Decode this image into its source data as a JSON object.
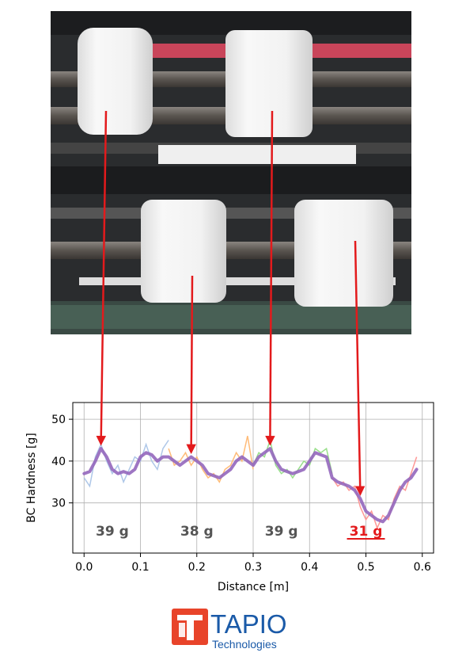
{
  "chart_data": {
    "type": "line",
    "xlabel": "Distance [m]",
    "ylabel": "BC Hardness [g]",
    "xlim": [
      -0.02,
      0.62
    ],
    "ylim": [
      18,
      54
    ],
    "xticks": [
      "0.0",
      "0.1",
      "0.2",
      "0.3",
      "0.4",
      "0.5",
      "0.6"
    ],
    "yticks": [
      "30",
      "40",
      "50"
    ],
    "grid": true,
    "series": [
      {
        "color": "#9467bd",
        "role": "smoothed",
        "x": [
          0.0,
          0.01,
          0.02,
          0.03,
          0.04,
          0.05,
          0.06,
          0.07,
          0.08,
          0.09,
          0.1,
          0.11,
          0.12,
          0.13,
          0.14,
          0.15,
          0.16,
          0.17,
          0.18,
          0.19,
          0.2,
          0.21,
          0.22,
          0.23,
          0.24,
          0.25,
          0.26,
          0.27,
          0.28,
          0.29,
          0.3,
          0.31,
          0.32,
          0.33,
          0.34,
          0.35,
          0.36,
          0.37,
          0.38,
          0.39,
          0.4,
          0.41,
          0.42,
          0.43,
          0.44,
          0.45,
          0.46,
          0.47,
          0.48,
          0.49,
          0.5,
          0.51,
          0.52,
          0.53,
          0.54,
          0.55,
          0.56,
          0.57,
          0.58,
          0.59
        ],
        "y": [
          37,
          37.5,
          40,
          43,
          41,
          38,
          37,
          37.5,
          37,
          38,
          41,
          42,
          41.5,
          40,
          41,
          41,
          40,
          39,
          40,
          41,
          40,
          39,
          37,
          36.5,
          36,
          37,
          38,
          40,
          41,
          40,
          39,
          41,
          42,
          43,
          40,
          38,
          37.5,
          37,
          37.5,
          38,
          40,
          42,
          41.5,
          41,
          36,
          35,
          34.5,
          34,
          33,
          31,
          28,
          27,
          26,
          25.5,
          27,
          30,
          33,
          35,
          36,
          38
        ]
      },
      {
        "color": "#aec7e8",
        "role": "raw",
        "x": [
          0.0,
          0.01,
          0.02,
          0.03,
          0.04,
          0.05,
          0.06,
          0.07,
          0.08,
          0.09,
          0.1,
          0.11,
          0.12,
          0.13,
          0.14,
          0.15
        ],
        "y": [
          36,
          34,
          41,
          44,
          40,
          37,
          39,
          35,
          38,
          41,
          40,
          44,
          40,
          38,
          43,
          45
        ]
      },
      {
        "color": "#ffbb78",
        "role": "raw",
        "x": [
          0.15,
          0.16,
          0.17,
          0.18,
          0.19,
          0.2,
          0.21,
          0.22,
          0.23,
          0.24,
          0.25,
          0.26,
          0.27,
          0.28,
          0.29,
          0.3
        ],
        "y": [
          43,
          39,
          40,
          42,
          39,
          41,
          38,
          36,
          37,
          35,
          38,
          39,
          42,
          40,
          46,
          38
        ]
      },
      {
        "color": "#98df8a",
        "role": "raw",
        "x": [
          0.3,
          0.31,
          0.32,
          0.33,
          0.34,
          0.35,
          0.36,
          0.37,
          0.38,
          0.39,
          0.4,
          0.41,
          0.42,
          0.43,
          0.44
        ],
        "y": [
          39,
          42,
          41,
          45,
          39,
          37,
          38,
          36,
          38,
          40,
          39,
          43,
          42,
          43,
          37
        ]
      },
      {
        "color": "#ff9896",
        "role": "raw",
        "x": [
          0.44,
          0.45,
          0.46,
          0.47,
          0.48,
          0.49,
          0.5,
          0.51,
          0.52,
          0.53,
          0.54,
          0.55,
          0.56,
          0.57,
          0.58,
          0.59
        ],
        "y": [
          36,
          34,
          35,
          33,
          34,
          29,
          26,
          28,
          24,
          27,
          26,
          31,
          34,
          33,
          37,
          41
        ]
      }
    ],
    "segment_labels": [
      {
        "text": "39 g",
        "x": 0.05,
        "color": "#555555",
        "underline": false
      },
      {
        "text": "38 g",
        "x": 0.2,
        "color": "#555555",
        "underline": false
      },
      {
        "text": "39 g",
        "x": 0.35,
        "color": "#555555",
        "underline": false
      },
      {
        "text": "31 g",
        "x": 0.5,
        "color": "#e31a1c",
        "underline": true
      }
    ]
  },
  "logo": {
    "word": "TAPIO",
    "sub": "Technologies",
    "accent": "#e8442a",
    "brand": "#1a5aa8"
  },
  "arrow_color": "#e31a1c"
}
